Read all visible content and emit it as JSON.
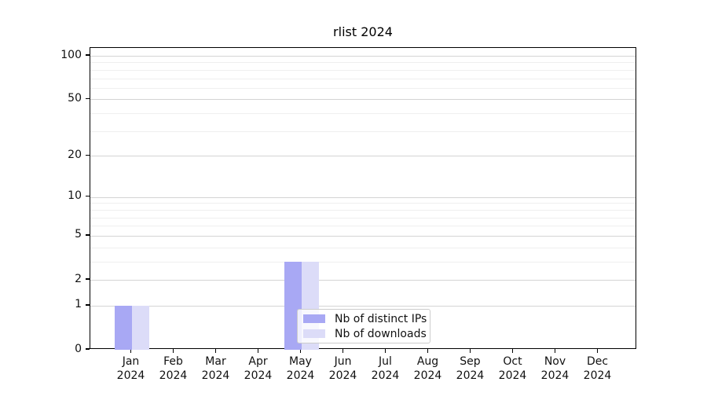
{
  "chart_data": {
    "type": "bar",
    "title": "rlist 2024",
    "x_categories_month": [
      "Jan",
      "Feb",
      "Mar",
      "Apr",
      "May",
      "Jun",
      "Jul",
      "Aug",
      "Sep",
      "Oct",
      "Nov",
      "Dec"
    ],
    "x_year": "2024",
    "series": [
      {
        "name": "Nb of distinct IPs",
        "color": "#a8a8f4",
        "values": [
          1,
          0,
          0,
          0,
          3,
          0,
          0,
          0,
          0,
          0,
          0,
          0
        ]
      },
      {
        "name": "Nb of downloads",
        "color": "#dcdcf8",
        "values": [
          1,
          0,
          0,
          0,
          3,
          0,
          0,
          0,
          0,
          0,
          0,
          0
        ]
      }
    ],
    "y_axis": {
      "scale": "log1p",
      "min": 0,
      "max": 100,
      "major_ticks": [
        0,
        1,
        2,
        5,
        10,
        20,
        50,
        100
      ],
      "minor_gridlines": [
        3,
        4,
        6,
        7,
        8,
        9,
        30,
        40,
        60,
        70,
        80,
        90
      ]
    },
    "grid": {
      "major_color": "#d4d4d4",
      "minor_color": "#efefef",
      "visible": true
    },
    "legend": {
      "position": "lower-center",
      "entries": [
        "Nb of distinct IPs",
        "Nb of downloads"
      ]
    }
  }
}
